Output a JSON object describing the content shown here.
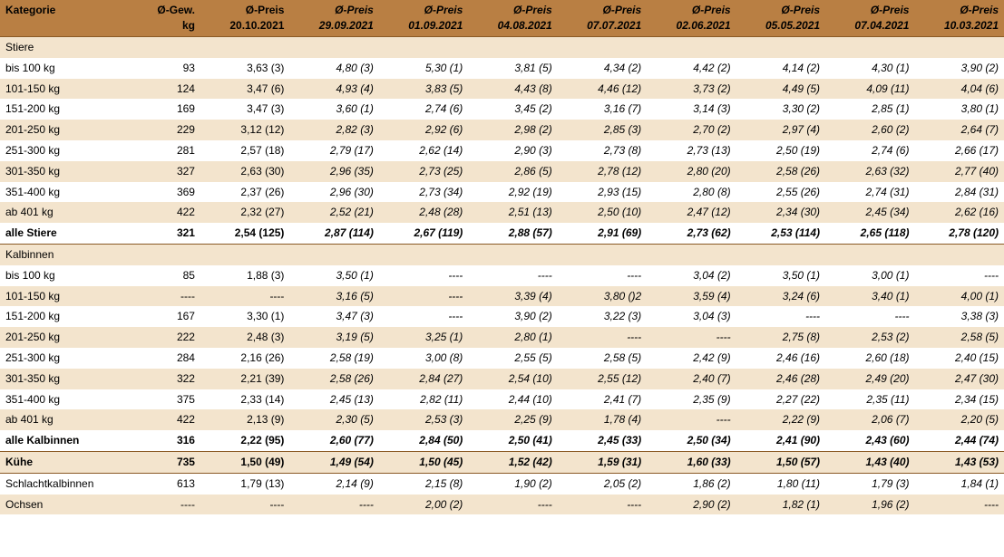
{
  "header": {
    "cat": "Kategorie",
    "gew": {
      "l1": "Ø-Gew.",
      "l2": "kg"
    },
    "dates": [
      "20.10.2021",
      "29.09.2021",
      "01.09.2021",
      "04.08.2021",
      "07.07.2021",
      "02.06.2021",
      "05.05.2021",
      "07.04.2021",
      "10.03.2021"
    ],
    "price_prefix": "Ø-Preis"
  },
  "colors": {
    "header_bg": "#b97f43",
    "row_even": "#f3e4cd",
    "row_odd": "#ffffff",
    "line_dark": "#8a5a25"
  },
  "rows": [
    {
      "type": "section",
      "stripe": "even",
      "label": "Stiere"
    },
    {
      "type": "data",
      "stripe": "odd",
      "label": "bis 100 kg",
      "gew": "93",
      "p": [
        "3,63 (3)",
        "4,80 (3)",
        "5,30 (1)",
        "3,81 (5)",
        "4,34 (2)",
        "4,42 (2)",
        "4,14 (2)",
        "4,30 (1)",
        "3,90 (2)"
      ]
    },
    {
      "type": "data",
      "stripe": "even",
      "label": "101-150 kg",
      "gew": "124",
      "p": [
        "3,47 (6)",
        "4,93 (4)",
        "3,83 (5)",
        "4,43 (8)",
        "4,46 (12)",
        "3,73 (2)",
        "4,49 (5)",
        "4,09 (11)",
        "4,04 (6)"
      ]
    },
    {
      "type": "data",
      "stripe": "odd",
      "label": "151-200 kg",
      "gew": "169",
      "p": [
        "3,47 (3)",
        "3,60 (1)",
        "2,74 (6)",
        "3,45 (2)",
        "3,16 (7)",
        "3,14 (3)",
        "3,30 (2)",
        "2,85 (1)",
        "3,80 (1)"
      ]
    },
    {
      "type": "data",
      "stripe": "even",
      "label": "201-250 kg",
      "gew": "229",
      "p": [
        "3,12 (12)",
        "2,82 (3)",
        "2,92 (6)",
        "2,98 (2)",
        "2,85 (3)",
        "2,70 (2)",
        "2,97 (4)",
        "2,60 (2)",
        "2,64 (7)"
      ]
    },
    {
      "type": "data",
      "stripe": "odd",
      "label": "251-300 kg",
      "gew": "281",
      "p": [
        "2,57 (18)",
        "2,79 (17)",
        "2,62 (14)",
        "2,90 (3)",
        "2,73 (8)",
        "2,73 (13)",
        "2,50 (19)",
        "2,74 (6)",
        "2,66 (17)"
      ]
    },
    {
      "type": "data",
      "stripe": "even",
      "label": "301-350 kg",
      "gew": "327",
      "p": [
        "2,63 (30)",
        "2,96 (35)",
        "2,73 (25)",
        "2,86 (5)",
        "2,78 (12)",
        "2,80 (20)",
        "2,58 (26)",
        "2,63 (32)",
        "2,77 (40)"
      ]
    },
    {
      "type": "data",
      "stripe": "odd",
      "label": "351-400 kg",
      "gew": "369",
      "p": [
        "2,37 (26)",
        "2,96 (30)",
        "2,73 (34)",
        "2,92 (19)",
        "2,93 (15)",
        "2,80 (8)",
        "2,55 (26)",
        "2,74 (31)",
        "2,84 (31)"
      ]
    },
    {
      "type": "data",
      "stripe": "even",
      "label": "ab 401 kg",
      "gew": "422",
      "p": [
        "2,32 (27)",
        "2,52 (21)",
        "2,48 (28)",
        "2,51 (13)",
        "2,50 (10)",
        "2,47 (12)",
        "2,34 (30)",
        "2,45 (34)",
        "2,62 (16)"
      ]
    },
    {
      "type": "total",
      "stripe": "odd",
      "label": "alle Stiere",
      "gew": "321",
      "p": [
        "2,54 (125)",
        "2,87 (114)",
        "2,67 (119)",
        "2,88 (57)",
        "2,91 (69)",
        "2,73 (62)",
        "2,53 (114)",
        "2,65 (118)",
        "2,78 (120)"
      ]
    },
    {
      "type": "section",
      "stripe": "even",
      "label": "Kalbinnen"
    },
    {
      "type": "data",
      "stripe": "odd",
      "label": "bis 100 kg",
      "gew": "85",
      "p": [
        "1,88 (3)",
        "3,50 (1)",
        "----",
        "----",
        "----",
        "3,04 (2)",
        "3,50 (1)",
        "3,00 (1)",
        "----"
      ]
    },
    {
      "type": "data",
      "stripe": "even",
      "label": "101-150 kg",
      "gew": "----",
      "p": [
        "----",
        "3,16 (5)",
        "----",
        "3,39 (4)",
        "3,80 ()2",
        "3,59 (4)",
        "3,24 (6)",
        "3,40 (1)",
        "4,00 (1)"
      ]
    },
    {
      "type": "data",
      "stripe": "odd",
      "label": "151-200 kg",
      "gew": "167",
      "p": [
        "3,30 (1)",
        "3,47 (3)",
        "----",
        "3,90 (2)",
        "3,22 (3)",
        "3,04 (3)",
        "----",
        "----",
        "3,38 (3)"
      ]
    },
    {
      "type": "data",
      "stripe": "even",
      "label": "201-250 kg",
      "gew": "222",
      "p": [
        "2,48 (3)",
        "3,19 (5)",
        "3,25 (1)",
        "2,80 (1)",
        "----",
        "----",
        "2,75 (8)",
        "2,53 (2)",
        "2,58 (5)"
      ]
    },
    {
      "type": "data",
      "stripe": "odd",
      "label": "251-300 kg",
      "gew": "284",
      "p": [
        "2,16 (26)",
        "2,58 (19)",
        "3,00 (8)",
        "2,55 (5)",
        "2,58 (5)",
        "2,42 (9)",
        "2,46 (16)",
        "2,60 (18)",
        "2,40 (15)"
      ]
    },
    {
      "type": "data",
      "stripe": "even",
      "label": "301-350 kg",
      "gew": "322",
      "p": [
        "2,21 (39)",
        "2,58 (26)",
        "2,84 (27)",
        "2,54 (10)",
        "2,55 (12)",
        "2,40 (7)",
        "2,46 (28)",
        "2,49 (20)",
        "2,47 (30)"
      ]
    },
    {
      "type": "data",
      "stripe": "odd",
      "label": "351-400 kg",
      "gew": "375",
      "p": [
        "2,33 (14)",
        "2,45 (13)",
        "2,82 (11)",
        "2,44 (10)",
        "2,41 (7)",
        "2,35 (9)",
        "2,27 (22)",
        "2,35 (11)",
        "2,34 (15)"
      ]
    },
    {
      "type": "data",
      "stripe": "even",
      "label": "ab 401 kg",
      "gew": "422",
      "p": [
        "2,13 (9)",
        "2,30 (5)",
        "2,53 (3)",
        "2,25 (9)",
        "1,78 (4)",
        "----",
        "2,22 (9)",
        "2,06 (7)",
        "2,20 (5)"
      ]
    },
    {
      "type": "total",
      "stripe": "odd",
      "label": "alle Kalbinnen",
      "gew": "316",
      "p": [
        "2,22 (95)",
        "2,60 (77)",
        "2,84 (50)",
        "2,50 (41)",
        "2,45 (33)",
        "2,50 (34)",
        "2,41 (90)",
        "2,43 (60)",
        "2,44 (74)"
      ]
    },
    {
      "type": "kuehe",
      "stripe": "even",
      "label": "Kühe",
      "gew": "735",
      "p": [
        "1,50 (49)",
        "1,49 (54)",
        "1,50 (45)",
        "1,52 (42)",
        "1,59 (31)",
        "1,60 (33)",
        "1,50 (57)",
        "1,43 (40)",
        "1,43 (53)"
      ]
    },
    {
      "type": "data",
      "stripe": "odd",
      "label": "Schlachtkalbinnen",
      "gew": "613",
      "p": [
        "1,79 (13)",
        "2,14 (9)",
        "2,15 (8)",
        "1,90 (2)",
        "2,05 (2)",
        "1,86 (2)",
        "1,80 (11)",
        "1,79 (3)",
        "1,84 (1)"
      ]
    },
    {
      "type": "data",
      "stripe": "even",
      "label": "Ochsen",
      "gew": "----",
      "p": [
        "----",
        "----",
        "2,00 (2)",
        "----",
        "----",
        "2,90 (2)",
        "1,82 (1)",
        "1,96 (2)",
        "----"
      ]
    }
  ]
}
